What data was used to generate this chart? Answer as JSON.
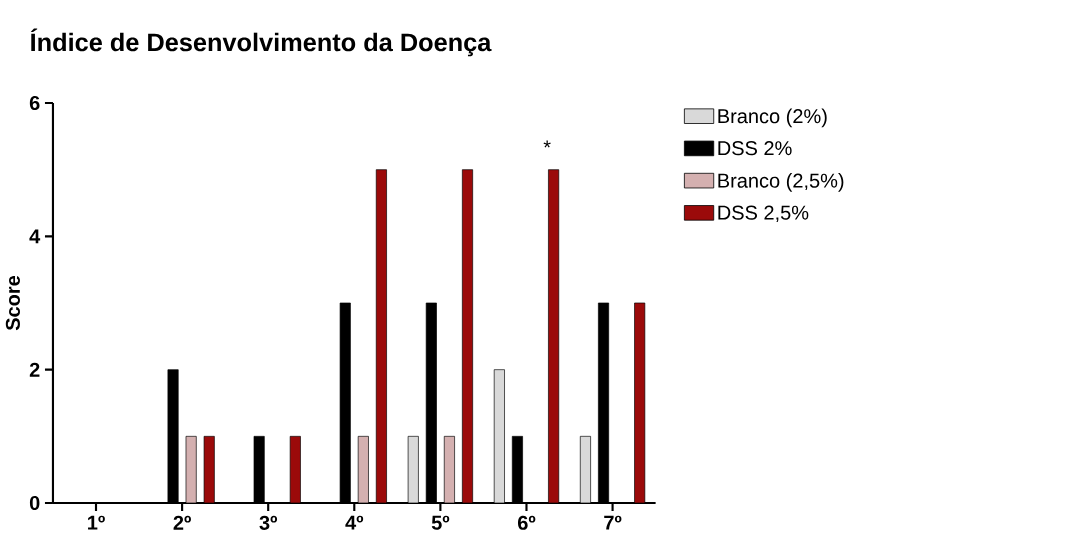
{
  "chart_data": {
    "type": "bar",
    "title": "Índice de Desenvolvimento da Doença",
    "ylabel": "Score",
    "categories": [
      "1º",
      "2º",
      "3º",
      "4º",
      "5º",
      "6º",
      "7º"
    ],
    "series": [
      {
        "name": "Branco (2%)",
        "color": "#d9d9d9",
        "values": [
          null,
          null,
          null,
          null,
          1,
          2,
          1
        ]
      },
      {
        "name": "DSS 2%",
        "color": "#000000",
        "values": [
          null,
          2,
          1,
          3,
          3,
          1,
          3
        ]
      },
      {
        "name": "Branco (2,5%)",
        "color": "#d4b0b0",
        "values": [
          null,
          1,
          null,
          1,
          1,
          null,
          null
        ]
      },
      {
        "name": "DSS 2,5%",
        "color": "#9b0a0a",
        "values": [
          null,
          1,
          1,
          5,
          5,
          5,
          3
        ]
      }
    ],
    "ylim": [
      0,
      6
    ],
    "yticks": [
      0,
      2,
      4,
      6
    ],
    "grid": false,
    "legend": "right",
    "annotations": [
      "*"
    ]
  }
}
